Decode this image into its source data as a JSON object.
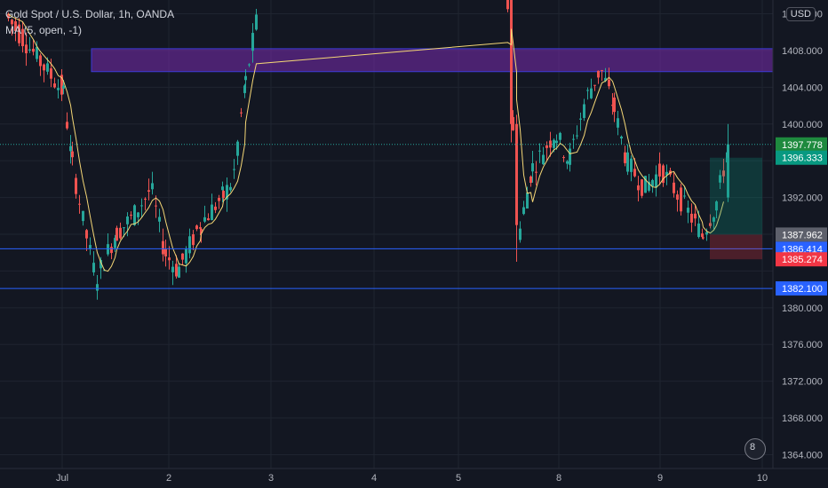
{
  "legend": {
    "title": "Gold Spot / U.S. Dollar, 1h, OANDA",
    "indicator": "MA (5, open, -1)"
  },
  "price_axis": {
    "currency": "USD",
    "labels": [
      "1412.000",
      "1408.000",
      "1404.000",
      "1400.000",
      "1392.000",
      "1380.000",
      "1376.000",
      "1372.000",
      "1368.000",
      "1364.000"
    ]
  },
  "time_axis": {
    "labels": [
      "Jul",
      "2",
      "3",
      "4",
      "5",
      "8",
      "9",
      "10"
    ]
  },
  "price_tags": [
    {
      "id": "last-price",
      "label": "1397.778",
      "value": 1397.778,
      "color": "#1e8a3e"
    },
    {
      "id": "target",
      "label": "1396.333",
      "value": 1396.333,
      "color": "#089981"
    },
    {
      "id": "entry",
      "label": "1387.962",
      "value": 1387.962,
      "color": "#5d606b"
    },
    {
      "id": "horizontal-line-1",
      "label": "1386.414",
      "value": 1386.414,
      "color": "#2962ff"
    },
    {
      "id": "stop",
      "label": "1385.274",
      "value": 1385.274,
      "color": "#f23645"
    },
    {
      "id": "horizontal-line-2",
      "label": "1382.100",
      "value": 1382.1,
      "color": "#2962ff"
    }
  ],
  "events_badge": {
    "count": "8"
  },
  "colors": {
    "up": "#26a69a",
    "down": "#ef5350",
    "ma": "#f5d776",
    "zone": "#7a2cb0",
    "level": "#2962ff"
  },
  "chart_data": {
    "type": "candlestick",
    "title": "Gold Spot / U.S. Dollar, 1h, OANDA",
    "series": [
      {
        "name": "Gold Spot / U.S. Dollar",
        "kind": "ohlc",
        "points": [
          {
            "x": "Jun 28",
            "c": 1412
          },
          {
            "x": "Jul 1 00:00",
            "c": 1404
          },
          {
            "x": "Jul 1 03:00",
            "c": 1396
          },
          {
            "x": "Jul 1 06:00",
            "c": 1390
          },
          {
            "x": "Jul 1 10:00",
            "c": 1383
          },
          {
            "x": "Jul 1 14:00",
            "c": 1388
          },
          {
            "x": "Jul 1 18:00",
            "c": 1390
          },
          {
            "x": "Jul 1 22:00",
            "c": 1393
          },
          {
            "x": "Jul 2 03:00",
            "c": 1386
          },
          {
            "x": "Jul 2 08:00",
            "c": 1384
          },
          {
            "x": "Jul 2 14:00",
            "c": 1389
          },
          {
            "x": "Jul 2 20:00",
            "c": 1392
          },
          {
            "x": "Jul 3 00:00",
            "c": 1394
          },
          {
            "x": "Jul 3 04:00",
            "c": 1404
          },
          {
            "x": "Jul 3 08:00",
            "c": 1412
          },
          {
            "x": "Jul 4 12:00",
            "c": 1416
          },
          {
            "x": "Jul 5 12:00",
            "c": 1414
          },
          {
            "x": "Jul 5 14:00",
            "c": 1400
          },
          {
            "x": "Jul 5 16:00",
            "c": 1388
          },
          {
            "x": "Jul 5 20:00",
            "c": 1395
          },
          {
            "x": "Jul 8 00:00",
            "c": 1399
          },
          {
            "x": "Jul 8 04:00",
            "c": 1396
          },
          {
            "x": "Jul 8 08:00",
            "c": 1403
          },
          {
            "x": "Jul 8 12:00",
            "c": 1406
          },
          {
            "x": "Jul 8 16:00",
            "c": 1402
          },
          {
            "x": "Jul 8 20:00",
            "c": 1396
          },
          {
            "x": "Jul 9 00:00",
            "c": 1393
          },
          {
            "x": "Jul 9 04:00",
            "c": 1395
          },
          {
            "x": "Jul 9 08:00",
            "c": 1392
          },
          {
            "x": "Jul 9 12:00",
            "c": 1388
          },
          {
            "x": "Jul 9 16:00",
            "c": 1391
          },
          {
            "x": "Jul 9 20:00",
            "c": 1397.778
          }
        ]
      },
      {
        "name": "MA (5, open, -1)",
        "kind": "line"
      }
    ],
    "ylim": [
      1362.5,
      1413.5
    ],
    "xlabel": "",
    "ylabel": "",
    "horizontal_lines": [
      1386.414,
      1382.1
    ],
    "zones": [
      {
        "from": 1405.7,
        "to": 1408.2,
        "label": ""
      }
    ],
    "position_tool": {
      "entry": 1387.962,
      "target": 1396.333,
      "stop": 1385.274
    },
    "grid": true
  }
}
